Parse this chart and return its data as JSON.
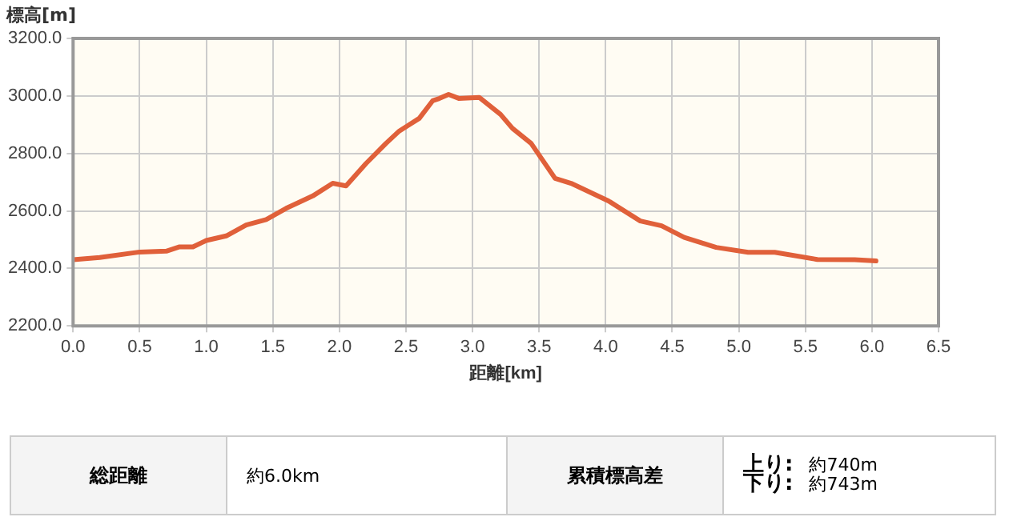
{
  "chart_data": {
    "type": "line",
    "xlabel": "距離[km]",
    "ylabel": "標高[m]",
    "x": [
      0,
      0.2,
      0.5,
      0.7,
      0.8,
      0.9,
      1.0,
      1.15,
      1.3,
      1.45,
      1.6,
      1.8,
      1.95,
      2.05,
      2.2,
      2.35,
      2.45,
      2.6,
      2.7,
      2.75,
      2.82,
      2.9,
      3.05,
      3.21,
      3.3,
      3.44,
      3.62,
      3.74,
      4.02,
      4.26,
      4.42,
      4.59,
      4.83,
      5.07,
      5.27,
      5.59,
      5.87,
      6.03
    ],
    "series": [
      {
        "color": "#e0603a",
        "values": [
          2430,
          2438,
          2457,
          2460,
          2475,
          2475,
          2497,
          2513,
          2551,
          2570,
          2609,
          2652,
          2696,
          2687,
          2765,
          2835,
          2878,
          2922,
          2983,
          2991,
          3005,
          2991,
          2995,
          2936,
          2887,
          2835,
          2713,
          2696,
          2635,
          2565,
          2548,
          2508,
          2473,
          2456,
          2456,
          2431,
          2430,
          2426
        ]
      }
    ],
    "xlim": [
      0,
      6.5
    ],
    "xticks": [
      {
        "value": 0,
        "label": "0.0"
      },
      0.5,
      {
        "value": 1,
        "label": "1.0"
      },
      1.5,
      {
        "value": 2,
        "label": "2.0"
      },
      2.5,
      {
        "value": 3,
        "label": "3.0"
      },
      3.5,
      {
        "value": 4,
        "label": "4.0"
      },
      4.5,
      {
        "value": 5,
        "label": "5.0"
      },
      5.5,
      {
        "value": 6,
        "label": "6.0"
      },
      6.5
    ],
    "ylim": [
      2200,
      3200
    ],
    "yticks": [
      {
        "value": 2200,
        "label": "2200.0"
      },
      {
        "value": 2400,
        "label": "2400.0"
      },
      {
        "value": 2600,
        "label": "2600.0"
      },
      {
        "value": 2800,
        "label": "2800.0"
      },
      {
        "value": 3000,
        "label": "3000.0"
      },
      {
        "value": 3200,
        "label": "3200.0"
      }
    ],
    "grid": true,
    "legend": false,
    "marker": "none",
    "line_style": "solid",
    "annotations": [
      "総距離",
      "約6.0km",
      "累積標高差",
      "上り:",
      "約740m",
      "下り:",
      "約743m"
    ]
  }
}
